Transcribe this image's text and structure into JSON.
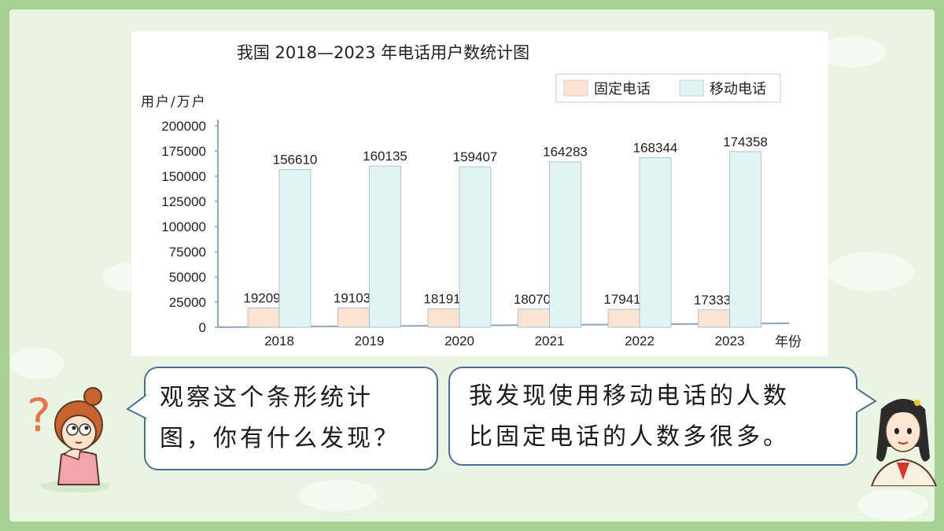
{
  "chart_data": {
    "type": "bar",
    "title": "我国 2018—2023 年电话用户数统计图",
    "ylabel": "用户/万户",
    "xlabel": "年份",
    "categories": [
      "2018",
      "2019",
      "2020",
      "2021",
      "2022",
      "2023"
    ],
    "ylim": [
      0,
      200000
    ],
    "yticks": [
      "200000",
      "175000",
      "150000",
      "125000",
      "100000",
      "75000",
      "50000",
      "25000",
      "0"
    ],
    "series": [
      {
        "name": "固定电话",
        "color": "#fbe3d2",
        "values": [
          19209,
          19103,
          18191,
          18070,
          17941,
          17333
        ]
      },
      {
        "name": "移动电话",
        "color": "#e2f3f3",
        "values": [
          156610,
          160135,
          159407,
          164283,
          168344,
          174358
        ]
      }
    ],
    "legend_position": "top-right",
    "grid": false
  },
  "dialogue": {
    "left": {
      "line1": "观察这个条形统计",
      "line2": "图，你有什么发现？"
    },
    "right": {
      "line1": "我发现使用移动电话的人数",
      "line2": "比固定电话的人数多很多。"
    }
  },
  "icons": {
    "question": "question-mark-icon",
    "girl_left": "thinking-girl-icon",
    "girl_right": "student-girl-icon"
  }
}
